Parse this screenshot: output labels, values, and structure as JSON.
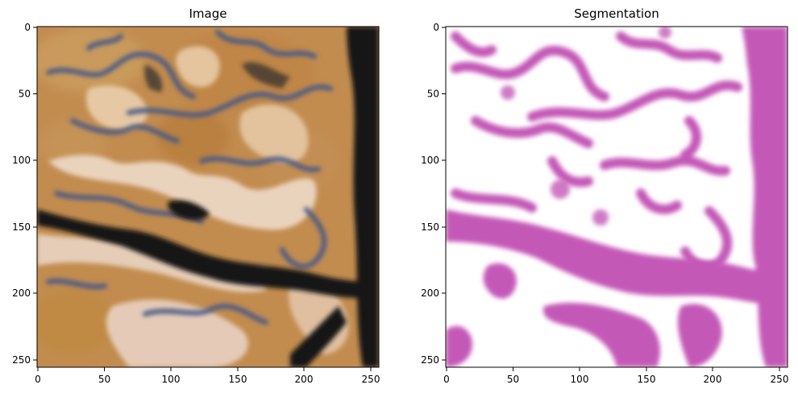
{
  "figure": {
    "panels": [
      {
        "title": "Image",
        "x_ticks": [
          "0",
          "50",
          "100",
          "150",
          "200",
          "250"
        ],
        "y_ticks": [
          "0",
          "50",
          "100",
          "150",
          "200",
          "250"
        ],
        "colors": {
          "base": "#c58f4c",
          "light": "#ead3bd",
          "dark": "#131313",
          "outline": "#4d5d88"
        }
      },
      {
        "title": "Segmentation",
        "x_ticks": [
          "0",
          "50",
          "100",
          "150",
          "200",
          "250"
        ],
        "y_ticks": [
          "0",
          "50",
          "100",
          "150",
          "200",
          "250"
        ],
        "colors": {
          "background": "#ffffff",
          "mask": "#c458b7"
        }
      }
    ],
    "axis_range": [
      0,
      256
    ]
  }
}
